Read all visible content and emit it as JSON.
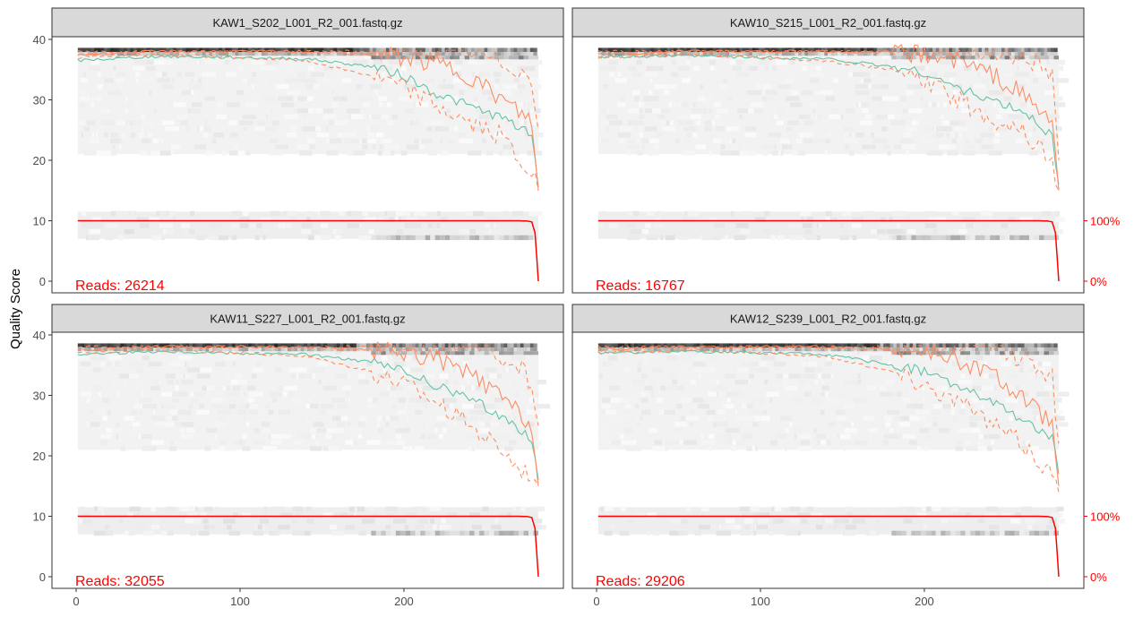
{
  "y_axis_title": "Quality Score",
  "colors": {
    "mean": "#66C2A5",
    "quantile": "#FC8D62",
    "cumulative": "#FF0000",
    "reads_label": "#FF0000",
    "strip_bg": "#D9D9D9",
    "panel_border": "#333333"
  },
  "chart_data": [
    {
      "type": "line",
      "title": "KAW1_S202_L001_R2_001.fastq.gz",
      "reads_label": "Reads:  26214",
      "xlim": [
        0,
        285
      ],
      "ylim": [
        0,
        40
      ],
      "x_ticks": [
        0,
        100,
        200
      ],
      "y_ticks": [
        0,
        10,
        20,
        30,
        40
      ],
      "right_ticks": [
        "0%",
        "100%"
      ],
      "series": [
        {
          "x": [
            1,
            50,
            100,
            140,
            180,
            200,
            220,
            240,
            260,
            270,
            278,
            282
          ],
          "values": [
            36.5,
            37.2,
            37.0,
            36.8,
            35.5,
            34.0,
            31.0,
            29.0,
            27.0,
            25.5,
            24.0,
            15.5
          ]
        },
        {
          "x": [
            1,
            50,
            100,
            140,
            180,
            200,
            220,
            240,
            260,
            270,
            278,
            282
          ],
          "values": [
            37.5,
            38.0,
            38.0,
            38.0,
            37.5,
            37.0,
            36.0,
            34.0,
            30.0,
            28.0,
            26.5,
            15.0
          ]
        },
        {
          "x": [
            1,
            50,
            100,
            140,
            180,
            200,
            220,
            240,
            260,
            270,
            278,
            282
          ],
          "values": [
            38.0,
            38.0,
            38.0,
            38.0,
            38.0,
            38.0,
            38.0,
            38.0,
            36.0,
            35.0,
            33.0,
            25.0
          ]
        },
        {
          "x": [
            1,
            50,
            100,
            140,
            180,
            200,
            220,
            240,
            260,
            270,
            278,
            282
          ],
          "values": [
            37.0,
            37.5,
            37.0,
            36.5,
            34.0,
            32.0,
            29.0,
            26.0,
            24.0,
            20.0,
            18.0,
            15.0
          ]
        },
        {
          "x": [
            1,
            270,
            275,
            278,
            280,
            281,
            282
          ],
          "values": [
            10.0,
            10.0,
            9.95,
            9.8,
            8.0,
            4.0,
            0.0
          ]
        }
      ]
    },
    {
      "type": "line",
      "title": "KAW10_S215_L001_R2_001.fastq.gz",
      "reads_label": "Reads:  16767",
      "xlim": [
        0,
        285
      ],
      "ylim": [
        0,
        40
      ],
      "x_ticks": [
        0,
        100,
        200
      ],
      "y_ticks": [
        0,
        10,
        20,
        30,
        40
      ],
      "right_ticks": [
        "0%",
        "100%"
      ],
      "series": [
        {
          "x": [
            1,
            50,
            100,
            140,
            180,
            200,
            220,
            240,
            260,
            270,
            278,
            282
          ],
          "values": [
            37.0,
            37.3,
            37.0,
            36.8,
            35.5,
            34.5,
            32.0,
            30.0,
            28.0,
            26.0,
            24.0,
            16.0
          ]
        },
        {
          "x": [
            1,
            50,
            100,
            140,
            180,
            200,
            220,
            240,
            260,
            270,
            278,
            282
          ],
          "values": [
            37.5,
            38.0,
            38.0,
            38.0,
            37.8,
            37.5,
            36.5,
            34.5,
            31.0,
            28.0,
            27.0,
            15.0
          ]
        },
        {
          "x": [
            1,
            50,
            100,
            140,
            180,
            200,
            220,
            240,
            260,
            270,
            278,
            282
          ],
          "values": [
            38.0,
            38.0,
            38.0,
            38.0,
            38.0,
            38.0,
            38.0,
            38.0,
            37.0,
            36.0,
            34.0,
            20.0
          ]
        },
        {
          "x": [
            1,
            50,
            100,
            140,
            180,
            200,
            220,
            240,
            260,
            270,
            278,
            282
          ],
          "values": [
            37.0,
            37.5,
            37.0,
            36.5,
            35.0,
            33.0,
            30.0,
            27.0,
            25.0,
            22.0,
            20.0,
            15.0
          ]
        },
        {
          "x": [
            1,
            270,
            275,
            278,
            280,
            281,
            282
          ],
          "values": [
            10.0,
            10.0,
            9.95,
            9.8,
            8.0,
            4.0,
            0.0
          ]
        }
      ]
    },
    {
      "type": "line",
      "title": "KAW11_S227_L001_R2_001.fastq.gz",
      "reads_label": "Reads:  32055",
      "xlim": [
        0,
        285
      ],
      "ylim": [
        0,
        40
      ],
      "x_ticks": [
        0,
        100,
        200
      ],
      "y_ticks": [
        0,
        10,
        20,
        30,
        40
      ],
      "right_ticks": [],
      "series": [
        {
          "x": [
            1,
            50,
            100,
            140,
            180,
            200,
            220,
            240,
            260,
            270,
            278,
            282
          ],
          "values": [
            36.8,
            37.3,
            37.0,
            36.8,
            35.5,
            34.0,
            31.5,
            29.5,
            26.5,
            24.5,
            23.0,
            16.0
          ]
        },
        {
          "x": [
            1,
            50,
            100,
            140,
            180,
            200,
            220,
            240,
            260,
            270,
            278,
            282
          ],
          "values": [
            37.5,
            38.0,
            38.0,
            38.0,
            37.5,
            37.0,
            36.0,
            33.5,
            29.5,
            27.0,
            25.0,
            15.0
          ]
        },
        {
          "x": [
            1,
            50,
            100,
            140,
            180,
            200,
            220,
            240,
            260,
            270,
            278,
            282
          ],
          "values": [
            38.0,
            38.0,
            38.0,
            38.0,
            38.0,
            38.0,
            38.0,
            38.0,
            36.0,
            35.0,
            32.0,
            25.0
          ]
        },
        {
          "x": [
            1,
            50,
            100,
            140,
            180,
            200,
            220,
            240,
            260,
            270,
            278,
            282
          ],
          "values": [
            37.0,
            37.5,
            37.0,
            36.5,
            34.0,
            32.0,
            29.0,
            25.0,
            21.0,
            18.0,
            17.0,
            15.0
          ]
        },
        {
          "x": [
            1,
            270,
            275,
            278,
            280,
            281,
            282
          ],
          "values": [
            10.0,
            10.0,
            9.95,
            9.8,
            8.0,
            4.0,
            0.0
          ]
        }
      ]
    },
    {
      "type": "line",
      "title": "KAW12_S239_L001_R2_001.fastq.gz",
      "reads_label": "Reads:  29206",
      "xlim": [
        0,
        285
      ],
      "ylim": [
        0,
        40
      ],
      "x_ticks": [
        0,
        100,
        200
      ],
      "y_ticks": [
        0,
        10,
        20,
        30,
        40
      ],
      "right_ticks": [
        "0%",
        "100%"
      ],
      "series": [
        {
          "x": [
            1,
            50,
            100,
            140,
            180,
            200,
            220,
            240,
            260,
            270,
            278,
            282
          ],
          "values": [
            37.0,
            37.3,
            37.0,
            36.8,
            35.0,
            34.0,
            31.5,
            29.0,
            26.0,
            24.0,
            23.0,
            17.0
          ]
        },
        {
          "x": [
            1,
            50,
            100,
            140,
            180,
            200,
            220,
            240,
            260,
            270,
            278,
            282
          ],
          "values": [
            37.5,
            38.0,
            38.0,
            38.0,
            37.5,
            37.0,
            36.0,
            33.5,
            29.5,
            27.0,
            25.5,
            15.0
          ]
        },
        {
          "x": [
            1,
            50,
            100,
            140,
            180,
            200,
            220,
            240,
            260,
            270,
            278,
            282
          ],
          "values": [
            38.0,
            38.0,
            38.0,
            38.0,
            38.0,
            38.0,
            38.0,
            38.0,
            36.0,
            35.0,
            33.0,
            22.0
          ]
        },
        {
          "x": [
            1,
            50,
            100,
            140,
            180,
            200,
            220,
            240,
            260,
            270,
            278,
            282
          ],
          "values": [
            37.0,
            37.5,
            37.0,
            36.5,
            34.0,
            32.0,
            29.0,
            25.5,
            22.0,
            19.0,
            17.5,
            14.0
          ]
        },
        {
          "x": [
            1,
            270,
            275,
            278,
            280,
            281,
            282
          ],
          "values": [
            10.0,
            10.0,
            9.95,
            9.8,
            8.0,
            4.0,
            0.0
          ]
        }
      ]
    }
  ]
}
